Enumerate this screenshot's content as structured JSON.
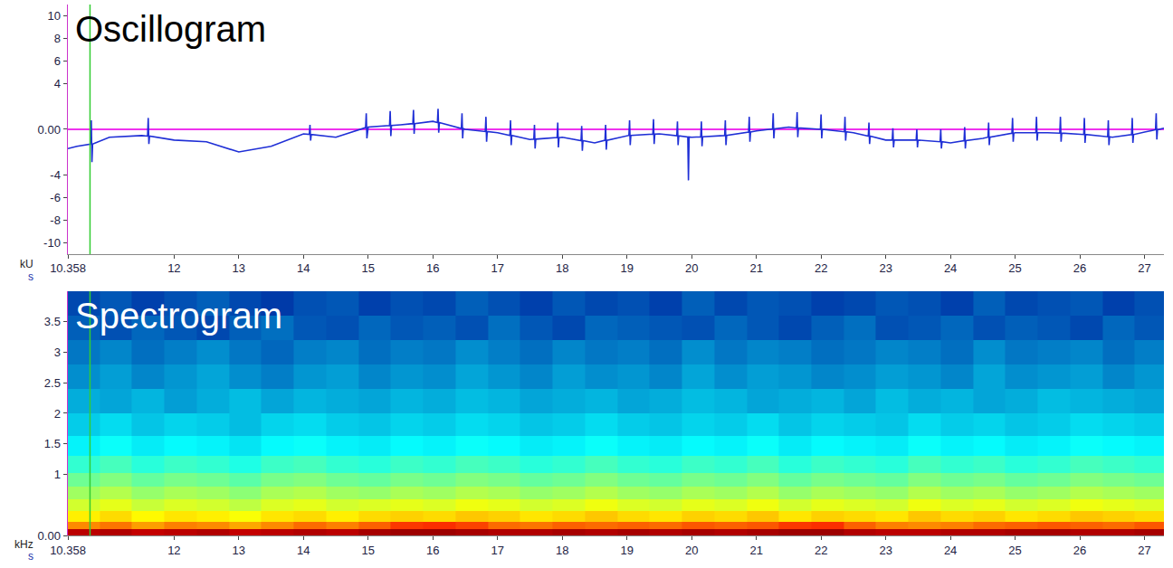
{
  "chart_data": [
    {
      "type": "line",
      "title": "Oscillogram",
      "y_label": "kU",
      "x_label": "s",
      "color": "#1f2fd6",
      "grid": false,
      "cursor_x": 10.7,
      "xlim": [
        10.358,
        27.3
      ],
      "xticks": [
        {
          "value": 10.358,
          "label": "10.358"
        },
        12,
        13,
        14,
        15,
        16,
        17,
        18,
        19,
        20,
        21,
        22,
        23,
        24,
        25,
        26,
        27
      ],
      "ylim": [
        -11,
        11
      ],
      "yticks": [
        10,
        8,
        6,
        4,
        {
          "value": 0,
          "label": "0.00"
        },
        -4,
        -6,
        -8,
        -10
      ],
      "x": [
        10.358,
        10.5,
        10.71,
        10.72,
        10.73,
        10.74,
        11.0,
        11.5,
        11.59,
        11.6,
        11.61,
        11.62,
        12.0,
        12.5,
        13.0,
        13.5,
        14.0,
        14.09,
        14.1,
        14.11,
        14.12,
        14.5,
        14.96,
        14.97,
        14.98,
        14.99,
        15.0,
        15.33,
        15.34,
        15.35,
        15.36,
        15.5,
        15.69,
        15.7,
        15.71,
        15.72,
        16.0,
        16.07,
        16.08,
        16.09,
        16.1,
        16.44,
        16.45,
        16.46,
        16.47,
        16.5,
        16.81,
        16.82,
        16.83,
        16.84,
        17.0,
        17.19,
        17.2,
        17.21,
        17.22,
        17.5,
        17.56,
        17.57,
        17.58,
        17.59,
        17.92,
        17.93,
        17.94,
        17.95,
        18.0,
        18.29,
        18.3,
        18.31,
        18.32,
        18.5,
        18.66,
        18.67,
        18.68,
        18.69,
        19.0,
        19.03,
        19.04,
        19.05,
        19.06,
        19.4,
        19.41,
        19.42,
        19.43,
        19.5,
        19.77,
        19.78,
        19.79,
        19.8,
        19.94,
        19.95,
        19.96,
        20.0,
        20.14,
        20.15,
        20.16,
        20.17,
        20.5,
        20.51,
        20.52,
        20.53,
        20.54,
        20.88,
        20.89,
        20.9,
        20.91,
        21.0,
        21.25,
        21.26,
        21.27,
        21.28,
        21.5,
        21.62,
        21.63,
        21.64,
        21.65,
        21.99,
        22.0,
        22.01,
        22.02,
        22.36,
        22.37,
        22.38,
        22.39,
        22.5,
        22.73,
        22.74,
        22.75,
        22.76,
        23.0,
        23.1,
        23.11,
        23.12,
        23.13,
        23.47,
        23.48,
        23.49,
        23.5,
        23.84,
        23.85,
        23.86,
        23.87,
        24.0,
        24.21,
        24.22,
        24.23,
        24.24,
        24.5,
        24.58,
        24.59,
        24.6,
        24.61,
        24.95,
        24.96,
        24.97,
        24.98,
        25.0,
        25.32,
        25.33,
        25.34,
        25.35,
        25.5,
        25.69,
        25.7,
        25.71,
        25.72,
        26.0,
        26.06,
        26.07,
        26.08,
        26.09,
        26.43,
        26.44,
        26.45,
        26.46,
        26.5,
        26.8,
        26.81,
        26.82,
        26.83,
        27.0,
        27.17,
        27.18,
        27.19,
        27.2,
        27.3
      ],
      "values": [
        -1.7,
        -1.5,
        -1.3,
        0.8,
        -2.9,
        -1.3,
        -0.7,
        -0.55,
        -0.6,
        1.0,
        -1.3,
        -0.6,
        -0.95,
        -1.1,
        -2.0,
        -1.5,
        -0.4,
        -0.45,
        0.4,
        -1.0,
        -0.45,
        -0.7,
        0.15,
        1.4,
        -0.8,
        0.15,
        0.2,
        0.33,
        1.6,
        -0.6,
        0.33,
        0.4,
        0.5,
        1.7,
        -0.4,
        0.5,
        0.7,
        0.6,
        1.8,
        -0.3,
        0.6,
        0.07,
        1.4,
        -0.8,
        0.07,
        0,
        -0.2,
        1.1,
        -1.1,
        -0.2,
        -0.3,
        -0.55,
        0.8,
        -1.4,
        -0.55,
        -0.9,
        -0.87,
        0.4,
        -1.7,
        -0.87,
        -0.73,
        0.6,
        -1.6,
        -0.73,
        -0.7,
        -1.0,
        0.3,
        -1.9,
        -1.0,
        -1.2,
        -0.97,
        0.4,
        -1.8,
        -0.97,
        -0.55,
        -0.54,
        0.8,
        -1.4,
        -0.54,
        -0.43,
        0.9,
        -1.3,
        -0.43,
        -0.4,
        -0.57,
        0.7,
        -1.4,
        -0.57,
        -0.67,
        -4.5,
        -0.67,
        -0.7,
        -0.66,
        0.7,
        -1.5,
        -0.66,
        -0.55,
        -0.54,
        0.8,
        -1.4,
        -0.54,
        -0.24,
        1.1,
        -1.1,
        -0.24,
        -0.15,
        0.03,
        1.4,
        -0.8,
        0.03,
        0.2,
        0.12,
        1.5,
        -0.7,
        0.12,
        0,
        1.3,
        -0.8,
        0,
        -0.22,
        1.1,
        -1.0,
        -0.22,
        -0.3,
        -0.6,
        0.6,
        -1.3,
        -0.6,
        -0.95,
        -0.95,
        0.1,
        -1.6,
        -0.95,
        -0.95,
        0.0,
        -1.6,
        -0.95,
        -1.1,
        0.0,
        -1.7,
        -1.1,
        -1.2,
        -1.0,
        0.2,
        -1.7,
        -1.0,
        -0.8,
        -0.7,
        0.6,
        -1.4,
        -0.7,
        -0.34,
        1.0,
        -1.1,
        -0.34,
        -0.3,
        -0.3,
        1.1,
        -1.0,
        -0.3,
        -0.3,
        -0.34,
        1.1,
        -1.1,
        -0.34,
        -0.4,
        -0.46,
        1.0,
        -1.2,
        -0.46,
        -0.66,
        0.8,
        -1.4,
        -0.66,
        -0.7,
        -0.47,
        1.0,
        -1.2,
        -0.47,
        -0.25,
        -0.04,
        1.4,
        -0.9,
        -0.04,
        0.1
      ]
    },
    {
      "type": "heatmap",
      "title": "Spectrogram",
      "y_label": "kHz",
      "x_label": "s",
      "grid": false,
      "cursor_x": 10.7,
      "xlim": [
        10.358,
        27.3
      ],
      "xticks": [
        {
          "value": 10.358,
          "label": "10.358"
        },
        12,
        13,
        14,
        15,
        16,
        17,
        18,
        19,
        20,
        21,
        22,
        23,
        24,
        25,
        26,
        27
      ],
      "ylim": [
        0,
        4
      ],
      "yticks": [
        {
          "value": 0,
          "label": "0.00"
        },
        1,
        1.5,
        2,
        2.5,
        3,
        3.5
      ],
      "zlim": [
        0,
        100
      ],
      "x": [
        10.6,
        11.1,
        11.6,
        12.1,
        12.6,
        13.1,
        13.6,
        14.1,
        14.6,
        15.1,
        15.6,
        16.1,
        16.6,
        17.1,
        17.6,
        18.1,
        18.6,
        19.1,
        19.6,
        20.1,
        20.6,
        21.1,
        21.6,
        22.1,
        22.6,
        23.1,
        23.6,
        24.1,
        24.6,
        25.1,
        25.6,
        26.1,
        26.6,
        27.1
      ],
      "y": [
        0.05,
        0.15,
        0.3,
        0.5,
        0.7,
        0.9,
        1.15,
        1.45,
        1.8,
        2.2,
        2.6,
        3.0,
        3.4,
        3.8
      ],
      "z": [
        [
          94,
          95,
          93,
          94,
          95,
          93,
          94,
          95,
          94,
          96,
          97,
          97,
          96,
          95,
          95,
          96,
          95,
          96,
          95,
          96,
          95,
          96,
          97,
          97,
          95,
          94,
          94,
          95,
          95,
          96,
          96,
          95,
          95,
          96
        ],
        [
          74,
          76,
          72,
          75,
          74,
          71,
          74,
          77,
          75,
          78,
          82,
          83,
          81,
          77,
          76,
          78,
          77,
          78,
          77,
          79,
          78,
          79,
          82,
          83,
          78,
          75,
          74,
          75,
          77,
          78,
          79,
          78,
          77,
          79
        ],
        [
          64,
          66,
          63,
          65,
          64,
          62,
          65,
          66,
          64,
          66,
          67,
          66,
          68,
          67,
          65,
          66,
          68,
          66,
          65,
          67,
          66,
          68,
          65,
          67,
          66,
          65,
          68,
          66,
          67,
          65,
          66,
          68,
          67,
          66
        ],
        [
          58,
          60,
          57,
          59,
          58,
          56,
          59,
          60,
          58,
          59,
          60,
          59,
          61,
          60,
          58,
          59,
          61,
          59,
          58,
          60,
          59,
          61,
          58,
          60,
          59,
          58,
          61,
          59,
          60,
          58,
          59,
          61,
          60,
          59
        ],
        [
          53,
          55,
          52,
          54,
          53,
          51,
          54,
          55,
          53,
          52,
          54,
          53,
          55,
          54,
          52,
          53,
          55,
          53,
          52,
          54,
          53,
          55,
          52,
          54,
          53,
          52,
          55,
          53,
          54,
          52,
          53,
          55,
          54,
          53
        ],
        [
          48,
          50,
          47,
          49,
          48,
          46,
          49,
          50,
          48,
          47,
          49,
          48,
          50,
          49,
          47,
          48,
          50,
          48,
          47,
          49,
          48,
          50,
          47,
          49,
          48,
          47,
          50,
          48,
          49,
          47,
          48,
          50,
          49,
          48
        ],
        [
          42,
          44,
          41,
          43,
          42,
          40,
          43,
          44,
          42,
          41,
          43,
          42,
          44,
          43,
          41,
          42,
          44,
          42,
          41,
          43,
          42,
          44,
          41,
          43,
          42,
          41,
          44,
          42,
          43,
          41,
          42,
          44,
          43,
          42
        ],
        [
          36,
          38,
          35,
          37,
          36,
          34,
          37,
          38,
          36,
          35,
          37,
          36,
          38,
          37,
          35,
          36,
          38,
          36,
          35,
          37,
          36,
          38,
          35,
          37,
          36,
          35,
          38,
          36,
          37,
          35,
          36,
          38,
          37,
          36
        ],
        [
          31,
          33,
          30,
          32,
          31,
          29,
          32,
          33,
          31,
          30,
          32,
          31,
          33,
          32,
          30,
          31,
          33,
          31,
          30,
          32,
          31,
          33,
          30,
          32,
          31,
          30,
          33,
          31,
          32,
          30,
          31,
          33,
          32,
          31
        ],
        [
          27,
          26,
          28,
          25,
          27,
          29,
          26,
          28,
          27,
          26,
          28,
          27,
          29,
          28,
          26,
          27,
          28,
          26,
          27,
          29,
          28,
          26,
          27,
          28,
          26,
          29,
          27,
          28,
          26,
          27,
          29,
          28,
          27,
          26
        ],
        [
          23,
          25,
          22,
          24,
          26,
          23,
          21,
          24,
          25,
          22,
          24,
          23,
          26,
          24,
          22,
          25,
          23,
          24,
          22,
          26,
          23,
          25,
          24,
          22,
          23,
          25,
          24,
          22,
          26,
          23,
          24,
          25,
          22,
          24
        ],
        [
          20,
          22,
          19,
          21,
          23,
          20,
          18,
          21,
          22,
          19,
          21,
          20,
          23,
          21,
          19,
          22,
          20,
          21,
          19,
          23,
          20,
          22,
          21,
          19,
          20,
          22,
          21,
          19,
          23,
          20,
          21,
          22,
          19,
          21
        ],
        [
          17,
          15,
          18,
          16,
          14,
          17,
          19,
          16,
          15,
          18,
          16,
          17,
          15,
          19,
          16,
          14,
          18,
          17,
          16,
          15,
          18,
          16,
          14,
          17,
          19,
          15,
          16,
          18,
          15,
          17,
          16,
          14,
          18,
          16
        ],
        [
          14,
          16,
          13,
          15,
          17,
          14,
          12,
          15,
          16,
          13,
          15,
          14,
          17,
          15,
          13,
          16,
          14,
          15,
          13,
          17,
          14,
          16,
          15,
          13,
          14,
          16,
          15,
          13,
          17,
          14,
          15,
          16,
          13,
          15
        ]
      ]
    }
  ]
}
